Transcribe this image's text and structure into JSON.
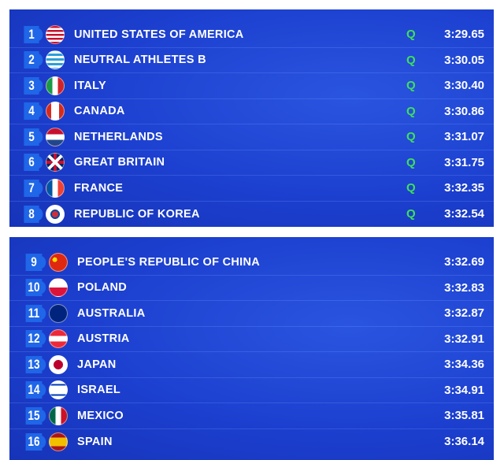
{
  "colors": {
    "background": "#1c3fcf",
    "rank_box": "#1f66e8",
    "qualified": "#3ee05a"
  },
  "qualified": [
    {
      "rank": "1",
      "country": "UNITED STATES OF AMERICA",
      "flag": "usa-flag-icon",
      "q": "Q",
      "time": "3:29.65"
    },
    {
      "rank": "2",
      "country": "NEUTRAL ATHLETES B",
      "flag": "neutral-flag-icon",
      "q": "Q",
      "time": "3:30.05"
    },
    {
      "rank": "3",
      "country": "ITALY",
      "flag": "italy-flag-icon",
      "q": "Q",
      "time": "3:30.40"
    },
    {
      "rank": "4",
      "country": "CANADA",
      "flag": "canada-flag-icon",
      "q": "Q",
      "time": "3:30.86"
    },
    {
      "rank": "5",
      "country": "NETHERLANDS",
      "flag": "netherlands-flag-icon",
      "q": "Q",
      "time": "3:31.07"
    },
    {
      "rank": "6",
      "country": "GREAT BRITAIN",
      "flag": "gb-flag-icon",
      "q": "Q",
      "time": "3:31.75"
    },
    {
      "rank": "7",
      "country": "FRANCE",
      "flag": "france-flag-icon",
      "q": "Q",
      "time": "3:32.35"
    },
    {
      "rank": "8",
      "country": "REPUBLIC OF KOREA",
      "flag": "korea-flag-icon",
      "q": "Q",
      "time": "3:32.54"
    }
  ],
  "others": [
    {
      "rank": "9",
      "country": "PEOPLE'S REPUBLIC OF CHINA",
      "flag": "china-flag-icon",
      "time": "3:32.69"
    },
    {
      "rank": "10",
      "country": "POLAND",
      "flag": "poland-flag-icon",
      "time": "3:32.83"
    },
    {
      "rank": "11",
      "country": "AUSTRALIA",
      "flag": "australia-flag-icon",
      "time": "3:32.87"
    },
    {
      "rank": "12",
      "country": "AUSTRIA",
      "flag": "austria-flag-icon",
      "time": "3:32.91"
    },
    {
      "rank": "13",
      "country": "JAPAN",
      "flag": "japan-flag-icon",
      "time": "3:34.36"
    },
    {
      "rank": "14",
      "country": "ISRAEL",
      "flag": "israel-flag-icon",
      "time": "3:34.91"
    },
    {
      "rank": "15",
      "country": "MEXICO",
      "flag": "mexico-flag-icon",
      "time": "3:35.81"
    },
    {
      "rank": "16",
      "country": "SPAIN",
      "flag": "spain-flag-icon",
      "time": "3:36.14"
    }
  ]
}
